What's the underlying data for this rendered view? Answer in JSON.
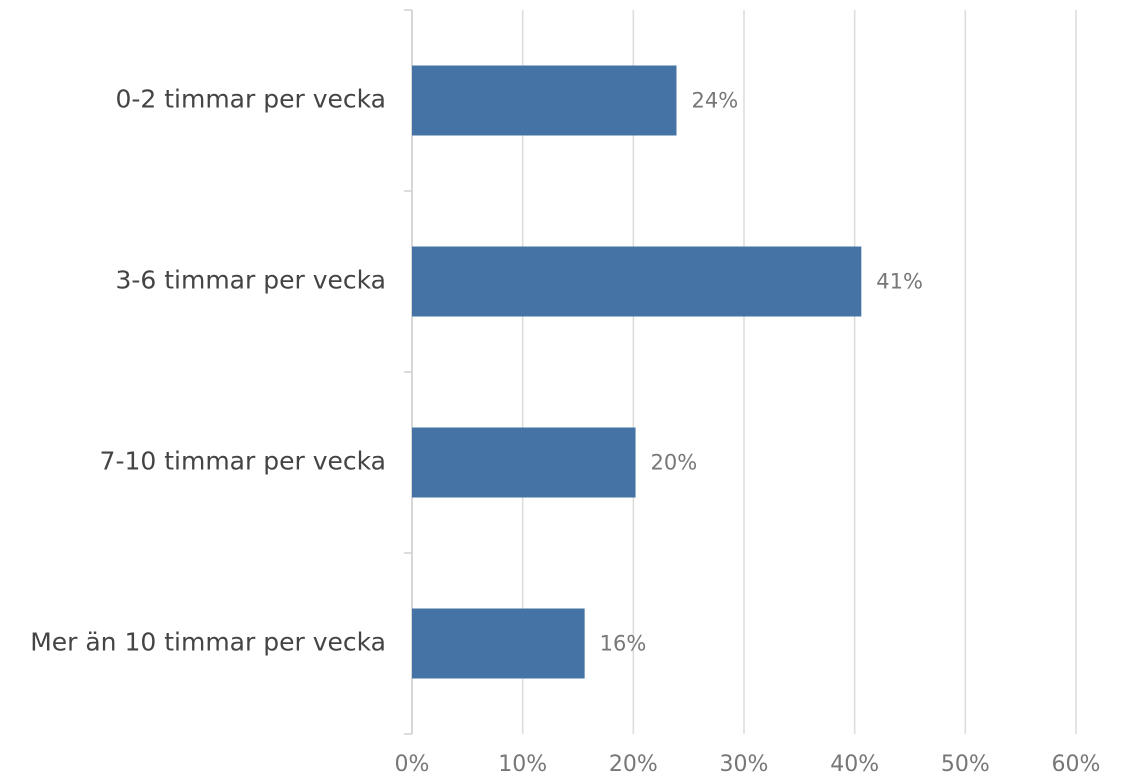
{
  "chart_data": {
    "type": "bar",
    "orientation": "horizontal",
    "categories": [
      "0-2 timmar per vecka",
      "3-6 timmar per vecka",
      "7-10 timmar per vecka",
      "Mer än 10 timmar per vecka"
    ],
    "values": [
      23.9,
      40.6,
      20.2,
      15.6
    ],
    "value_labels": [
      "24%",
      "41%",
      "20%",
      "16%"
    ],
    "color": "#4673a6",
    "xlim": [
      0,
      60
    ],
    "xticks": [
      {
        "value": 0,
        "label": "0%"
      },
      {
        "value": 10,
        "label": "10%"
      },
      {
        "value": 20,
        "label": "20%"
      },
      {
        "value": 30,
        "label": "30%"
      },
      {
        "value": 40,
        "label": "40%"
      },
      {
        "value": 50,
        "label": "50%"
      },
      {
        "value": 60,
        "label": "60%"
      }
    ],
    "grid": true
  }
}
